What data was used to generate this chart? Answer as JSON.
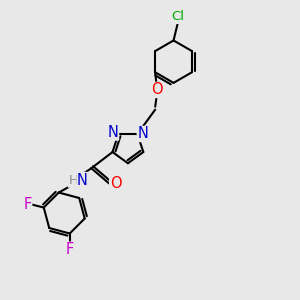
{
  "bg_color": "#e8e8e8",
  "bond_color": "#000000",
  "bond_width": 1.5,
  "atom_colors": {
    "C": "#000000",
    "N": "#0000cc",
    "O": "#ff0000",
    "Cl": "#00aa00",
    "F": "#cc00cc",
    "H": "#888888"
  },
  "font_size": 9.5
}
